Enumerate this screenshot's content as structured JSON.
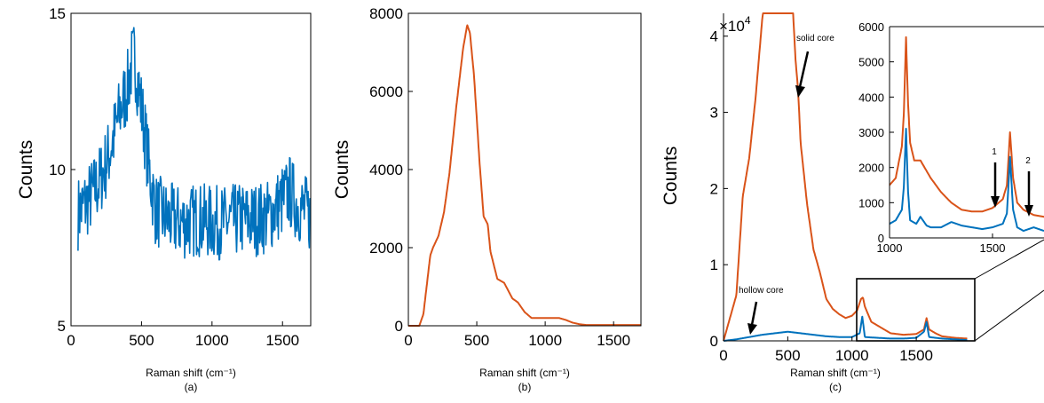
{
  "colors": {
    "blue": "#0072BD",
    "orange": "#D95319"
  },
  "chart_data": [
    {
      "type": "line",
      "caption": "(a)",
      "xlabel": "Raman shift (cm⁻¹)",
      "ylabel": "Counts",
      "xlim": [
        0,
        1700
      ],
      "ylim": [
        5,
        15
      ],
      "xticks": [
        "0",
        "500",
        "1000",
        "1500"
      ],
      "yticks": [
        "5",
        "10",
        "15"
      ],
      "series": [
        {
          "color": "blue",
          "noise": 1.2,
          "x": [
            50,
            100,
            150,
            200,
            250,
            300,
            350,
            400,
            430,
            450,
            480,
            520,
            560,
            600,
            700,
            800,
            900,
            1000,
            1100,
            1200,
            1300,
            1400,
            1500,
            1550,
            1600,
            1700
          ],
          "y": [
            8.6,
            8.9,
            9.2,
            9.6,
            10.2,
            11.0,
            11.9,
            12.6,
            13.4,
            13.6,
            12.6,
            11.3,
            9.8,
            8.7,
            8.4,
            8.3,
            8.4,
            8.3,
            8.3,
            8.4,
            8.4,
            8.5,
            9.0,
            9.3,
            8.9,
            8.5
          ]
        }
      ]
    },
    {
      "type": "line",
      "caption": "(b)",
      "xlabel": "Raman shift (cm⁻¹)",
      "ylabel": "Counts",
      "xlim": [
        0,
        1700
      ],
      "ylim": [
        0,
        8000
      ],
      "xticks": [
        "0",
        "500",
        "1000",
        "1500"
      ],
      "yticks": [
        "0",
        "2000",
        "4000",
        "6000",
        "8000"
      ],
      "series": [
        {
          "color": "orange",
          "x": [
            0,
            80,
            110,
            140,
            160,
            180,
            220,
            260,
            300,
            350,
            400,
            430,
            450,
            480,
            520,
            550,
            580,
            600,
            650,
            700,
            760,
            800,
            850,
            900,
            1000,
            1100,
            1150,
            1200,
            1250,
            1300,
            1500,
            1700
          ],
          "y": [
            0,
            0,
            300,
            1200,
            1800,
            2000,
            2300,
            2900,
            3900,
            5600,
            7100,
            7700,
            7500,
            6400,
            4200,
            2800,
            2600,
            1900,
            1200,
            1100,
            700,
            600,
            350,
            200,
            200,
            200,
            150,
            80,
            40,
            20,
            20,
            20
          ]
        }
      ]
    },
    {
      "type": "line",
      "caption": "(c)",
      "xlabel": "Raman shift (cm⁻¹)",
      "ylabel": "Counts",
      "multiplier_base": "×10",
      "multiplier_exp": "4",
      "xlim": [
        0,
        1900
      ],
      "ylim": [
        0,
        4.3
      ],
      "xticks": [
        "0",
        "500",
        "1000",
        "1500"
      ],
      "yticks": [
        "0",
        "1",
        "2",
        "3",
        "4"
      ],
      "series": [
        {
          "color": "orange",
          "x": [
            0,
            100,
            150,
            200,
            250,
            300,
            310,
            540,
            560,
            580,
            600,
            650,
            700,
            750,
            800,
            850,
            900,
            950,
            1000,
            1040,
            1070,
            1085,
            1100,
            1150,
            1200,
            1300,
            1400,
            1500,
            1560,
            1580,
            1600,
            1650,
            1700,
            1800,
            1900
          ],
          "y": [
            0,
            0.6,
            1.9,
            2.4,
            3.2,
            4.2,
            4.35,
            4.35,
            3.7,
            3.3,
            2.6,
            1.8,
            1.2,
            0.9,
            0.55,
            0.42,
            0.35,
            0.3,
            0.33,
            0.4,
            0.55,
            0.57,
            0.45,
            0.25,
            0.2,
            0.1,
            0.08,
            0.09,
            0.15,
            0.3,
            0.15,
            0.1,
            0.06,
            0.04,
            0.03
          ]
        },
        {
          "color": "blue",
          "x": [
            0,
            100,
            200,
            300,
            400,
            500,
            600,
            700,
            800,
            900,
            1000,
            1060,
            1080,
            1100,
            1200,
            1300,
            1400,
            1500,
            1560,
            1580,
            1600,
            1700,
            1800,
            1900
          ],
          "y": [
            0,
            0.02,
            0.05,
            0.08,
            0.1,
            0.12,
            0.1,
            0.08,
            0.06,
            0.05,
            0.05,
            0.1,
            0.32,
            0.05,
            0.04,
            0.03,
            0.03,
            0.04,
            0.12,
            0.25,
            0.05,
            0.03,
            0.02,
            0.01
          ]
        }
      ],
      "annotations": [
        "solid core",
        "hollow core"
      ],
      "inset": {
        "xlim": [
          1000,
          1750
        ],
        "ylim": [
          0,
          6000
        ],
        "xticks": [
          "1000",
          "1500"
        ],
        "yticks": [
          "0",
          "1000",
          "2000",
          "3000",
          "4000",
          "5000",
          "6000"
        ],
        "markers": [
          "1",
          "2"
        ],
        "series": [
          {
            "color": "orange",
            "x": [
              1000,
              1030,
              1060,
              1070,
              1080,
              1090,
              1100,
              1120,
              1150,
              1180,
              1200,
              1250,
              1300,
              1350,
              1400,
              1450,
              1500,
              1550,
              1570,
              1585,
              1600,
              1620,
              1650,
              1700,
              1750
            ],
            "y": [
              1500,
              1700,
              2600,
              3600,
              5700,
              3800,
              2700,
              2200,
              2200,
              1900,
              1700,
              1300,
              1000,
              800,
              750,
              750,
              850,
              1100,
              1500,
              3000,
              1700,
              1000,
              800,
              650,
              600
            ]
          },
          {
            "color": "blue",
            "x": [
              1000,
              1030,
              1060,
              1070,
              1080,
              1090,
              1100,
              1130,
              1150,
              1180,
              1200,
              1250,
              1300,
              1350,
              1400,
              1450,
              1500,
              1550,
              1570,
              1585,
              1600,
              1620,
              1650,
              1700,
              1750
            ],
            "y": [
              400,
              500,
              800,
              1500,
              3100,
              1300,
              500,
              400,
              600,
              350,
              300,
              300,
              450,
              350,
              300,
              250,
              300,
              400,
              700,
              2300,
              800,
              300,
              200,
              300,
              200
            ]
          }
        ]
      }
    }
  ]
}
